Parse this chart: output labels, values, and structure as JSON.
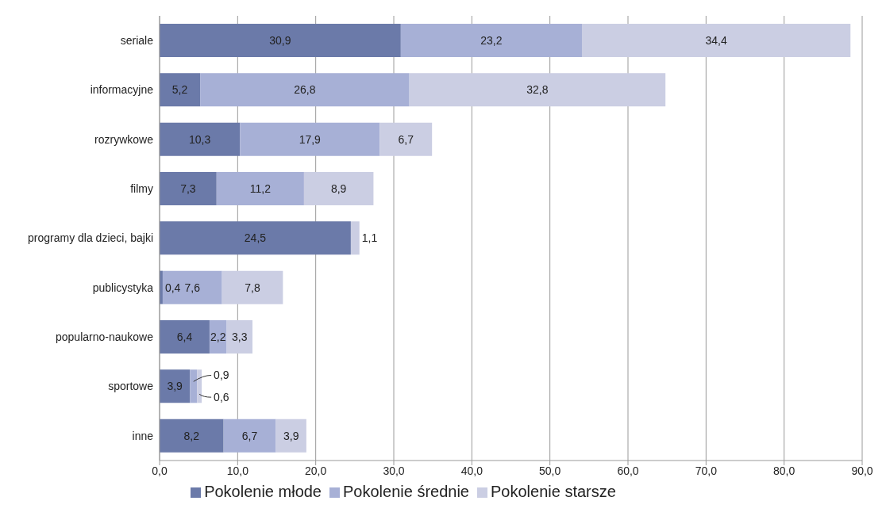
{
  "chart_data": {
    "type": "bar",
    "orientation": "horizontal",
    "stacked": true,
    "categories": [
      "seriale",
      "informacyjne",
      "rozrywkowe",
      "filmy",
      "programy dla dzieci, bajki",
      "publicystyka",
      "popularno-naukowe",
      "sportowe",
      "inne"
    ],
    "series": [
      {
        "name": "Pokolenie młode",
        "color": "#6b7aa9",
        "values": [
          30.9,
          5.2,
          10.3,
          7.3,
          24.5,
          0.4,
          6.4,
          3.9,
          8.2
        ],
        "value_labels": [
          "30,9",
          "5,2",
          "10,3",
          "7,3",
          "24,5",
          "0,4",
          "6,4",
          "3,9",
          "8,2"
        ]
      },
      {
        "name": "Pokolenie średnie",
        "color": "#a7b0d6",
        "values": [
          23.2,
          26.8,
          17.9,
          11.2,
          null,
          7.6,
          2.2,
          0.9,
          6.7
        ],
        "value_labels": [
          "23,2",
          "26,8",
          "17,9",
          "11,2",
          null,
          "7,6",
          "2,2",
          "0,9",
          "6,7"
        ]
      },
      {
        "name": "Pokolenie starsze",
        "color": "#cbcee3",
        "values": [
          34.4,
          32.8,
          6.7,
          8.9,
          1.1,
          7.8,
          3.3,
          0.6,
          3.9
        ],
        "value_labels": [
          "34,4",
          "32,8",
          "6,7",
          "8,9",
          "1,1",
          "7,8",
          "3,3",
          "0,6",
          "3,9"
        ]
      }
    ],
    "xlim": [
      0,
      90
    ],
    "xticks": [
      {
        "value": 0,
        "label": "0,0"
      },
      {
        "value": 10,
        "label": "10,0"
      },
      {
        "value": 20,
        "label": "20,0"
      },
      {
        "value": 30,
        "label": "30,0"
      },
      {
        "value": 40,
        "label": "40,0"
      },
      {
        "value": 50,
        "label": "50,0"
      },
      {
        "value": 60,
        "label": "60,0"
      },
      {
        "value": 70,
        "label": "70,0"
      },
      {
        "value": 80,
        "label": "80,0"
      },
      {
        "value": 90,
        "label": "90,0"
      }
    ],
    "grid": "x",
    "legend": "bottom"
  }
}
